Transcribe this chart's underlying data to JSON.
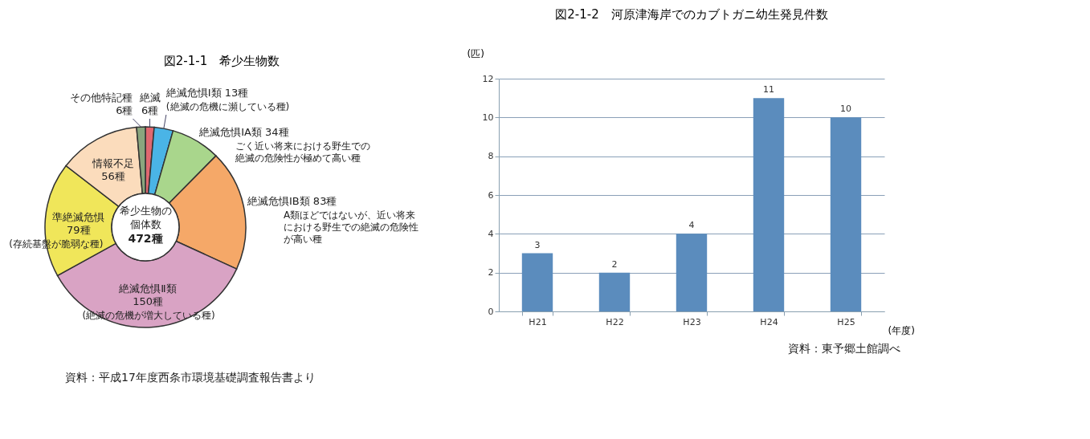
{
  "chart_data": [
    {
      "type": "donut",
      "title": "図2-1-1　希少生物数",
      "categories": [
        "絶滅",
        "絶滅危惧Ⅰ類",
        "絶滅危惧ⅠA類",
        "絶滅危惧ⅠB類",
        "絶滅危惧Ⅱ類",
        "準絶滅危惧",
        "情報不足",
        "その他特記種"
      ],
      "values": [
        6,
        13,
        34,
        83,
        150,
        79,
        56,
        6
      ],
      "value_labels": [
        "6種",
        "13種",
        "34種",
        "83種",
        "150種",
        "79種",
        "56種",
        "6種"
      ],
      "colors": [
        "#e06870",
        "#4ab4e6",
        "#a9d68c",
        "#f5a868",
        "#d9a3c4",
        "#f0e65a",
        "#fbdcbc",
        "#8aa67e"
      ],
      "annotations": [
        "希少生物の個体数",
        "472種",
        {
          "text": "(絶滅の危機に瀕している種)",
          "x": "絶滅危惧Ⅰ類"
        },
        {
          "text": "ごく近い将来における野生での絶滅の危険性が極めて高い種",
          "x": "絶滅危惧ⅠA類"
        },
        {
          "text": "A類ほどではないが、近い将来における野生での絶滅の危険性が高い種",
          "x": "絶滅危惧ⅠB類"
        },
        {
          "text": "(絶滅の危機が増大している種)",
          "x": "絶滅危惧Ⅱ類"
        },
        {
          "text": "(存続基盤が脆弱な種)",
          "x": "準絶滅危惧"
        },
        "資料：平成17年度西条市環境基礎調査報告書より"
      ],
      "legend": false
    },
    {
      "type": "bar",
      "title": "図2-1-2　河原津海岸でのカブトガニ幼生発見件数",
      "categories": [
        "H21",
        "H22",
        "H23",
        "H24",
        "H25"
      ],
      "values": [
        3,
        2,
        4,
        11,
        10
      ],
      "color": "#5b8cbd",
      "ylabel": "(匹)",
      "xlabel": "(年度)",
      "ylim": [
        0,
        12
      ],
      "yticks": [
        0,
        2,
        4,
        6,
        8,
        10,
        12
      ],
      "grid": "y",
      "data_labels": true,
      "annotations": [
        "資料：東予郷土館調べ"
      ]
    }
  ]
}
